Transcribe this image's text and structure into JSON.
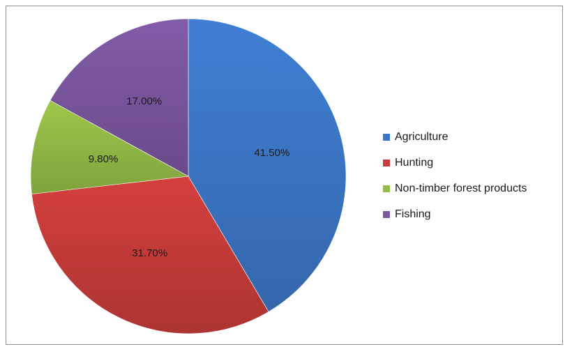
{
  "chart_data": {
    "type": "pie",
    "categories": [
      "Agriculture",
      "Hunting",
      "Non-timber forest products",
      "Fishing"
    ],
    "values": [
      41.5,
      31.7,
      9.8,
      17.0
    ],
    "data_labels": [
      "41.50%",
      "31.70%",
      "9.80%",
      "17.00%"
    ],
    "colors": [
      "#3c78c8",
      "#c83c3a",
      "#94bc46",
      "#7b579f"
    ],
    "legend": {
      "position": "right",
      "entries": [
        "Agriculture",
        "Hunting",
        "Non-timber forest products",
        "Fishing"
      ]
    },
    "start": "12 o'clock",
    "direction": "clockwise"
  }
}
